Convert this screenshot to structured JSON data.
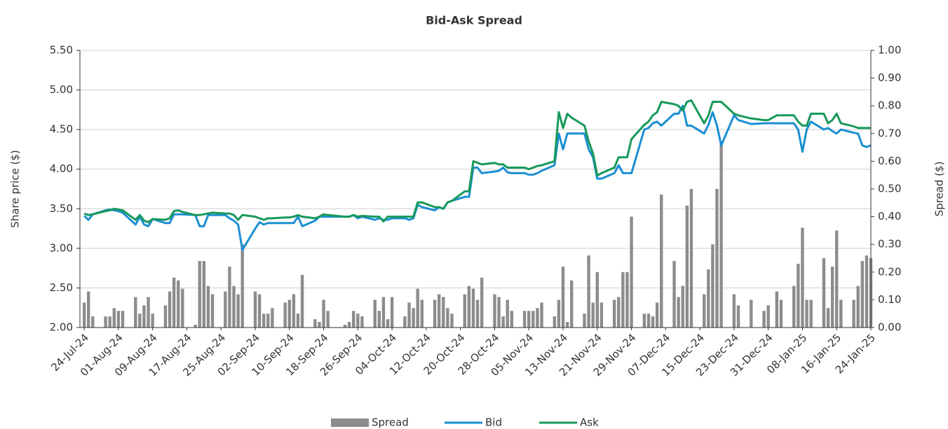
{
  "chart_data": {
    "type": "line",
    "title": "Bid-Ask Spread",
    "y_label": "Share price ($)",
    "y2_label": "Spread ($)",
    "legend": "bottom",
    "grid": true,
    "xlim": [
      "2024-07-23",
      "2025-01-24"
    ],
    "xticks": [
      {
        "value": "2024-07-24",
        "label": "24-Jul-24"
      },
      {
        "value": "2024-08-01",
        "label": "01-Aug-24"
      },
      {
        "value": "2024-08-09",
        "label": "09-Aug-24"
      },
      {
        "value": "2024-08-17",
        "label": "17-Aug-24"
      },
      {
        "value": "2024-08-25",
        "label": "25-Aug-24"
      },
      {
        "value": "2024-09-02",
        "label": "02-Sep-24"
      },
      {
        "value": "2024-09-10",
        "label": "10-Sep-24"
      },
      {
        "value": "2024-09-18",
        "label": "18-Sep-24"
      },
      {
        "value": "2024-09-26",
        "label": "26-Sep-24"
      },
      {
        "value": "2024-10-04",
        "label": "04-Oct-24"
      },
      {
        "value": "2024-10-12",
        "label": "12-Oct-24"
      },
      {
        "value": "2024-10-20",
        "label": "20-Oct-24"
      },
      {
        "value": "2024-10-28",
        "label": "28-Oct-24"
      },
      {
        "value": "2024-11-05",
        "label": "05-Nov-24"
      },
      {
        "value": "2024-11-13",
        "label": "13-Nov-24"
      },
      {
        "value": "2024-11-21",
        "label": "21-Nov-24"
      },
      {
        "value": "2024-11-29",
        "label": "29-Nov-24"
      },
      {
        "value": "2024-12-07",
        "label": "07-Dec-24"
      },
      {
        "value": "2024-12-15",
        "label": "15-Dec-24"
      },
      {
        "value": "2024-12-23",
        "label": "23-Dec-24"
      },
      {
        "value": "2024-12-31",
        "label": "31-Dec-24"
      },
      {
        "value": "2025-01-08",
        "label": "08-Jan-25"
      },
      {
        "value": "2025-01-16",
        "label": "16-Jan-25"
      },
      {
        "value": "2025-01-24",
        "label": "24-Jan-25"
      }
    ],
    "ylim": [
      2,
      5.5
    ],
    "yticks": [
      {
        "value": 2,
        "label": "2.00"
      },
      {
        "value": 2.5,
        "label": "2.50"
      },
      {
        "value": 3,
        "label": "3.00"
      },
      {
        "value": 3.5,
        "label": "3.50"
      },
      {
        "value": 4,
        "label": "4.00"
      },
      {
        "value": 4.5,
        "label": "4.50"
      },
      {
        "value": 5,
        "label": "5.00"
      },
      {
        "value": 5.5,
        "label": "5.50"
      }
    ],
    "y2lim": [
      0,
      1
    ],
    "y2ticks": [
      {
        "value": 0,
        "label": "0.00"
      },
      {
        "value": 0.1,
        "label": "0.10"
      },
      {
        "value": 0.2,
        "label": "0.20"
      },
      {
        "value": 0.3,
        "label": "0.30"
      },
      {
        "value": 0.4,
        "label": "0.40"
      },
      {
        "value": 0.5,
        "label": "0.50"
      },
      {
        "value": 0.6,
        "label": "0.60"
      },
      {
        "value": 0.7,
        "label": "0.70"
      },
      {
        "value": 0.8,
        "label": "0.80"
      },
      {
        "value": 0.9,
        "label": "0.90"
      },
      {
        "value": 1,
        "label": "1.00"
      }
    ],
    "x": [
      "2024-07-24",
      "2024-07-25",
      "2024-07-26",
      "2024-07-29",
      "2024-07-30",
      "2024-07-31",
      "2024-08-01",
      "2024-08-02",
      "2024-08-05",
      "2024-08-06",
      "2024-08-07",
      "2024-08-08",
      "2024-08-09",
      "2024-08-12",
      "2024-08-13",
      "2024-08-14",
      "2024-08-15",
      "2024-08-16",
      "2024-08-19",
      "2024-08-20",
      "2024-08-21",
      "2024-08-22",
      "2024-08-23",
      "2024-08-26",
      "2024-08-27",
      "2024-08-28",
      "2024-08-29",
      "2024-08-30",
      "2024-09-02",
      "2024-09-03",
      "2024-09-04",
      "2024-09-05",
      "2024-09-06",
      "2024-09-09",
      "2024-09-10",
      "2024-09-11",
      "2024-09-12",
      "2024-09-13",
      "2024-09-16",
      "2024-09-17",
      "2024-09-18",
      "2024-09-19",
      "2024-09-23",
      "2024-09-24",
      "2024-09-25",
      "2024-09-26",
      "2024-09-27",
      "2024-09-30",
      "2024-10-01",
      "2024-10-02",
      "2024-10-03",
      "2024-10-04",
      "2024-10-07",
      "2024-10-08",
      "2024-10-09",
      "2024-10-10",
      "2024-10-11",
      "2024-10-14",
      "2024-10-15",
      "2024-10-16",
      "2024-10-17",
      "2024-10-18",
      "2024-10-21",
      "2024-10-22",
      "2024-10-23",
      "2024-10-24",
      "2024-10-25",
      "2024-10-28",
      "2024-10-29",
      "2024-10-30",
      "2024-10-31",
      "2024-11-01",
      "2024-11-04",
      "2024-11-05",
      "2024-11-06",
      "2024-11-07",
      "2024-11-08",
      "2024-11-11",
      "2024-11-12",
      "2024-11-13",
      "2024-11-14",
      "2024-11-15",
      "2024-11-18",
      "2024-11-19",
      "2024-11-20",
      "2024-11-21",
      "2024-11-22",
      "2024-11-25",
      "2024-11-26",
      "2024-11-27",
      "2024-11-28",
      "2024-11-29",
      "2024-12-02",
      "2024-12-03",
      "2024-12-04",
      "2024-12-05",
      "2024-12-06",
      "2024-12-09",
      "2024-12-10",
      "2024-12-11",
      "2024-12-12",
      "2024-12-13",
      "2024-12-16",
      "2024-12-17",
      "2024-12-18",
      "2024-12-19",
      "2024-12-20",
      "2024-12-23",
      "2024-12-24",
      "2024-12-27",
      "2024-12-30",
      "2024-12-31",
      "2025-01-02",
      "2025-01-03",
      "2025-01-06",
      "2025-01-07",
      "2025-01-08",
      "2025-01-09",
      "2025-01-10",
      "2025-01-13",
      "2025-01-14",
      "2025-01-15",
      "2025-01-16",
      "2025-01-17",
      "2025-01-20",
      "2025-01-21",
      "2025-01-22",
      "2025-01-23",
      "2025-01-24"
    ],
    "series": [
      {
        "name": "Spread",
        "type": "bar",
        "axis": "y2",
        "color": "#8c8c8c",
        "values": [
          0.09,
          0.13,
          0.04,
          0.04,
          0.04,
          0.07,
          0.06,
          0.06,
          0.11,
          0.05,
          0.08,
          0.11,
          0.05,
          0.08,
          0.13,
          0.18,
          0.17,
          0.14,
          0.01,
          0.24,
          0.24,
          0.15,
          0.12,
          0.13,
          0.22,
          0.15,
          0.12,
          0.3,
          0.13,
          0.12,
          0.05,
          0.05,
          0.07,
          0.09,
          0.1,
          0.12,
          0.05,
          0.19,
          0.03,
          0.02,
          0.1,
          0.06,
          0.01,
          0.02,
          0.06,
          0.05,
          0.04,
          0.1,
          0.06,
          0.11,
          0.03,
          0.11,
          0.04,
          0.09,
          0.07,
          0.14,
          0.1,
          0.1,
          0.12,
          0.11,
          0.07,
          0.05,
          0.12,
          0.15,
          0.14,
          0.1,
          0.18,
          0.12,
          0.11,
          0.04,
          0.1,
          0.06,
          0.06,
          0.06,
          0.06,
          0.07,
          0.09,
          0.04,
          0.1,
          0.22,
          0.02,
          0.17,
          0.05,
          0.26,
          0.09,
          0.2,
          0.09,
          0.1,
          0.11,
          0.2,
          0.2,
          0.4,
          0.05,
          0.05,
          0.04,
          0.09,
          0.48,
          0.24,
          0.11,
          0.15,
          0.44,
          0.5,
          0.12,
          0.21,
          0.3,
          0.5,
          0.67,
          0.12,
          0.08,
          0.1,
          0.06,
          0.08,
          0.13,
          0.1,
          0.15,
          0.23,
          0.36,
          0.1,
          0.1,
          0.25,
          0.07,
          0.22,
          0.35,
          0.1,
          0.1,
          0.15,
          0.24,
          0.26,
          0.25
        ]
      },
      {
        "name": "Bid",
        "type": "line",
        "color": "#1b8fd2",
        "values": [
          3.41,
          3.36,
          3.43,
          3.48,
          3.49,
          3.48,
          3.47,
          3.45,
          3.3,
          3.4,
          3.3,
          3.28,
          3.37,
          3.32,
          3.32,
          3.43,
          3.43,
          3.43,
          3.42,
          3.28,
          3.28,
          3.42,
          3.42,
          3.42,
          3.38,
          3.35,
          3.3,
          2.98,
          3.25,
          3.33,
          3.3,
          3.32,
          3.32,
          3.32,
          3.32,
          3.32,
          3.4,
          3.28,
          3.35,
          3.4,
          3.4,
          3.4,
          3.4,
          3.4,
          3.42,
          3.38,
          3.4,
          3.36,
          3.38,
          3.36,
          3.36,
          3.38,
          3.38,
          3.36,
          3.38,
          3.55,
          3.52,
          3.48,
          3.52,
          3.5,
          3.58,
          3.6,
          3.65,
          3.65,
          4.02,
          4.02,
          3.95,
          3.97,
          3.98,
          4.02,
          3.96,
          3.95,
          3.95,
          3.93,
          3.93,
          3.95,
          3.98,
          4.05,
          4.45,
          4.25,
          4.45,
          4.45,
          4.45,
          4.25,
          4.15,
          3.88,
          3.88,
          3.95,
          4.05,
          3.95,
          3.95,
          3.95,
          4.5,
          4.52,
          4.58,
          4.6,
          4.55,
          4.7,
          4.7,
          4.8,
          4.55,
          4.55,
          4.45,
          4.56,
          4.72,
          4.55,
          4.3,
          4.68,
          4.62,
          4.57,
          4.58,
          4.58,
          4.58,
          4.58,
          4.58,
          4.5,
          4.22,
          4.5,
          4.6,
          4.5,
          4.52,
          4.48,
          4.45,
          4.5,
          4.46,
          4.45,
          4.3,
          4.28,
          4.3
        ]
      },
      {
        "name": "Ask",
        "type": "line",
        "color": "#17995a",
        "values": [
          3.44,
          3.42,
          3.43,
          3.47,
          3.48,
          3.5,
          3.49,
          3.48,
          3.36,
          3.42,
          3.35,
          3.33,
          3.37,
          3.36,
          3.38,
          3.47,
          3.48,
          3.46,
          3.42,
          3.42,
          3.43,
          3.44,
          3.45,
          3.44,
          3.44,
          3.42,
          3.36,
          3.42,
          3.4,
          3.38,
          3.36,
          3.38,
          3.38,
          3.39,
          3.39,
          3.4,
          3.42,
          3.4,
          3.38,
          3.4,
          3.43,
          3.42,
          3.4,
          3.4,
          3.42,
          3.4,
          3.41,
          3.4,
          3.4,
          3.34,
          3.4,
          3.4,
          3.4,
          3.4,
          3.4,
          3.58,
          3.58,
          3.52,
          3.52,
          3.5,
          3.58,
          3.6,
          3.72,
          3.72,
          4.1,
          4.08,
          4.06,
          4.08,
          4.06,
          4.06,
          4.02,
          4.02,
          4.02,
          4.0,
          4.02,
          4.04,
          4.05,
          4.1,
          4.72,
          4.52,
          4.7,
          4.65,
          4.55,
          4.35,
          4.2,
          3.92,
          3.95,
          4.02,
          4.15,
          4.15,
          4.15,
          4.38,
          4.56,
          4.6,
          4.68,
          4.72,
          4.85,
          4.82,
          4.8,
          4.74,
          4.85,
          4.87,
          4.58,
          4.68,
          4.85,
          4.85,
          4.85,
          4.7,
          4.68,
          4.64,
          4.62,
          4.62,
          4.68,
          4.68,
          4.68,
          4.6,
          4.55,
          4.55,
          4.7,
          4.7,
          4.58,
          4.62,
          4.7,
          4.58,
          4.54,
          4.52,
          4.52,
          4.52,
          4.52
        ]
      }
    ]
  }
}
